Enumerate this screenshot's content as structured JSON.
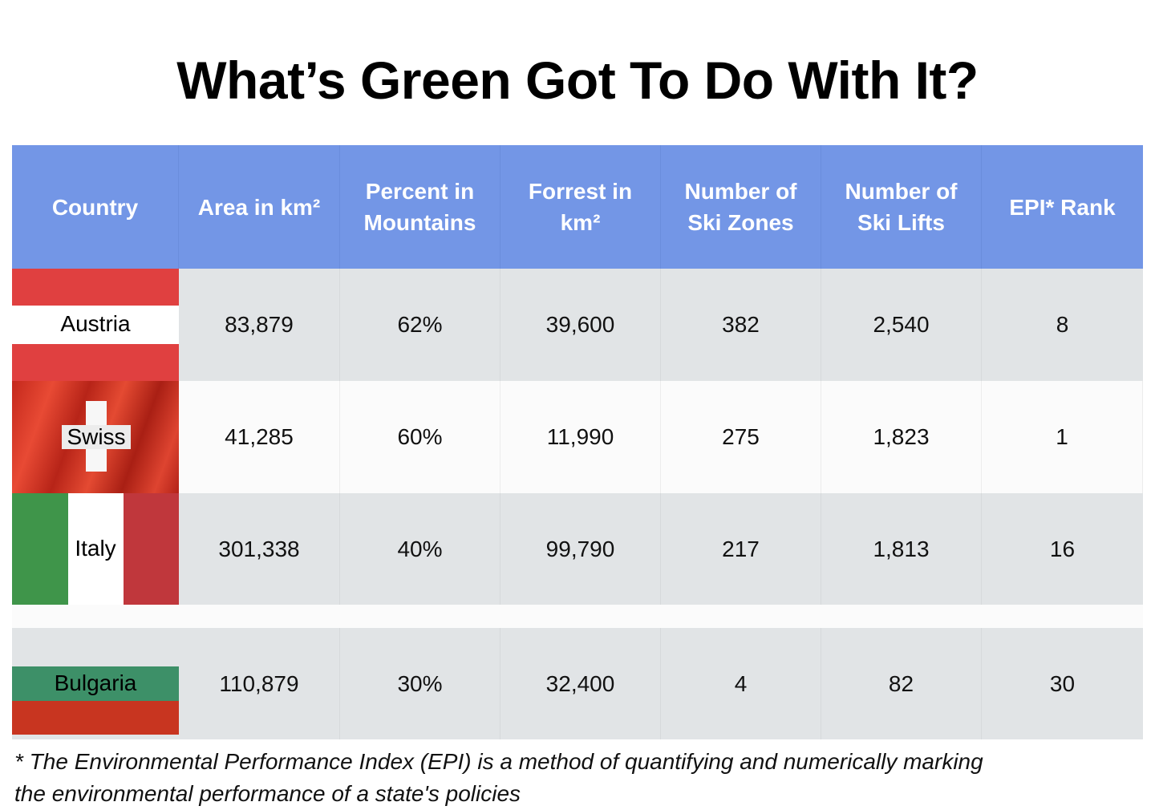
{
  "title": "What’s Green Got To Do With It?",
  "headers": {
    "country": "Country",
    "area": "Area in km²",
    "mountains_1": "Percent in",
    "mountains_2": "Mountains",
    "forest_1": "Forrest in",
    "forest_2": "km²",
    "zones_1": "Number of",
    "zones_2": "Ski Zones",
    "lifts_1": "Number of",
    "lifts_2": "Ski Lifts",
    "epi": "EPI* Rank"
  },
  "rows": [
    {
      "country": "Austria",
      "area": "83,879",
      "mountains": "62%",
      "forest": "39,600",
      "zones": "382",
      "lifts": "2,540",
      "epi": "8"
    },
    {
      "country": "Swiss",
      "area": "41,285",
      "mountains": "60%",
      "forest": "11,990",
      "zones": "275",
      "lifts": "1,823",
      "epi": "1"
    },
    {
      "country": "Italy",
      "area": "301,338",
      "mountains": "40%",
      "forest": "99,790",
      "zones": "217",
      "lifts": "1,813",
      "epi": "16"
    },
    {
      "country": "Bulgaria",
      "area": "110,879",
      "mountains": "30%",
      "forest": "32,400",
      "zones": "4",
      "lifts": "82",
      "epi": "30"
    }
  ],
  "footnote_1": "* The Environmental Performance Index (EPI) is a method of quantifying and numerically marking",
  "footnote_2": "the environmental performance of a state's policies",
  "colors": {
    "header_bg": "#7396e6",
    "row_gray": "#e1e4e6",
    "row_white": "#fbfbfb"
  }
}
